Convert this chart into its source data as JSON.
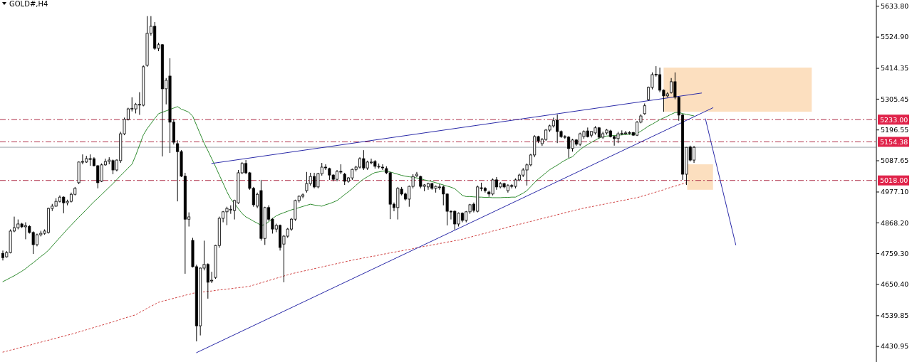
{
  "chart_data": {
    "type": "candlestick",
    "title": "GOLD#,H4",
    "tick_labels": "y",
    "grid": false,
    "ylim": [
      4376,
      5656
    ],
    "yticks": [
      {
        "value": 5633.8,
        "label": "5633.80"
      },
      {
        "value": 5524.9,
        "label": "5524.90"
      },
      {
        "value": 5414.35,
        "label": "5414.35"
      },
      {
        "value": 5305.45,
        "label": "5305.45"
      },
      {
        "value": 5196.55,
        "label": "5196.55"
      },
      {
        "value": 5087.65,
        "label": "5087.65"
      },
      {
        "value": 4977.1,
        "label": "4977.10"
      },
      {
        "value": 4868.2,
        "label": "4868.20"
      },
      {
        "value": 4759.3,
        "label": "4759.30"
      },
      {
        "value": 4650.4,
        "label": "4650.40"
      },
      {
        "value": 4539.85,
        "label": "4539.85"
      },
      {
        "value": 4430.95,
        "label": "4430.95"
      }
    ],
    "categories": [
      null,
      null,
      null,
      null,
      null,
      null,
      null,
      null,
      null,
      null,
      null,
      null,
      null,
      null,
      null,
      null,
      null,
      null,
      null,
      null,
      null,
      null,
      null,
      null,
      null,
      null,
      null,
      null,
      null,
      null,
      null,
      null,
      null,
      null,
      null,
      null,
      null,
      null,
      null,
      null,
      null,
      null,
      null,
      null,
      null,
      null,
      null,
      null,
      null,
      null,
      null,
      null,
      null,
      null,
      null,
      null,
      null,
      null,
      null,
      null,
      null,
      null,
      null,
      null,
      null,
      null,
      null,
      null,
      null,
      null,
      null,
      null,
      null,
      null,
      null,
      null,
      null,
      null,
      null,
      null,
      null,
      null,
      null,
      null,
      null,
      null,
      null,
      null,
      null,
      null,
      null,
      null,
      null,
      null,
      null,
      null,
      null,
      null,
      null,
      null,
      null,
      null,
      null,
      null,
      null,
      null,
      null,
      null,
      null,
      null,
      null,
      null,
      null,
      null,
      null,
      null,
      null,
      null,
      null,
      null,
      null,
      null,
      null,
      null,
      null,
      null,
      null,
      null,
      null,
      null,
      null,
      null,
      null,
      null,
      null,
      null,
      null,
      null,
      null,
      null,
      null,
      null,
      null,
      null,
      null,
      null,
      null,
      null,
      null,
      null,
      null,
      null,
      null,
      null,
      null,
      null,
      null,
      null,
      null,
      null,
      null,
      null,
      null,
      null,
      null,
      null,
      null,
      null,
      null,
      null,
      null,
      null,
      null,
      null,
      null,
      null,
      null,
      null,
      null,
      null,
      null,
      null,
      null,
      null,
      null,
      null,
      null,
      null,
      null,
      null,
      null,
      null,
      null,
      null
    ],
    "ohlc": [
      [
        4760,
        4770,
        4735,
        4745
      ],
      [
        4748,
        4768,
        4745,
        4763
      ],
      [
        4763,
        4845,
        4760,
        4839
      ],
      [
        4839,
        4890,
        4835,
        4851
      ],
      [
        4851,
        4880,
        4845,
        4864
      ],
      [
        4864,
        4868,
        4850,
        4854
      ],
      [
        4854,
        4870,
        4810,
        4858
      ],
      [
        4855,
        4860,
        4830,
        4834
      ],
      [
        4834,
        4838,
        4758,
        4791
      ],
      [
        4791,
        4830,
        4785,
        4826
      ],
      [
        4826,
        4840,
        4820,
        4831
      ],
      [
        4831,
        4845,
        4826,
        4839
      ],
      [
        4834,
        4922,
        4830,
        4919
      ],
      [
        4919,
        4935,
        4910,
        4927
      ],
      [
        4927,
        4955,
        4925,
        4944
      ],
      [
        4944,
        4965,
        4940,
        4959
      ],
      [
        4959,
        4962,
        4902,
        4939
      ],
      [
        4939,
        4950,
        4930,
        4944
      ],
      [
        4944,
        4975,
        4940,
        4969
      ],
      [
        4969,
        4995,
        4965,
        4990
      ],
      [
        5010,
        5085,
        5005,
        5083
      ],
      [
        5083,
        5110,
        5075,
        5085
      ],
      [
        5083,
        5105,
        5080,
        5095
      ],
      [
        5095,
        5110,
        5070,
        5093
      ],
      [
        5095,
        5100,
        5068,
        5070
      ],
      [
        5070,
        5072,
        4990,
        5010
      ],
      [
        5015,
        5078,
        5012,
        5073
      ],
      [
        5073,
        5095,
        5070,
        5085
      ],
      [
        5085,
        5100,
        5075,
        5090
      ],
      [
        5088,
        5092,
        5040,
        5055
      ],
      [
        5055,
        5092,
        5050,
        5090
      ],
      [
        5088,
        5190,
        5080,
        5183
      ],
      [
        5183,
        5240,
        5178,
        5234
      ],
      [
        5234,
        5275,
        5230,
        5271
      ],
      [
        5271,
        5312,
        5262,
        5273
      ],
      [
        5271,
        5292,
        5255,
        5287
      ],
      [
        5285,
        5330,
        5250,
        5287
      ],
      [
        5284,
        5425,
        5280,
        5420
      ],
      [
        5425,
        5599,
        5420,
        5538
      ],
      [
        5538,
        5599,
        5530,
        5563
      ],
      [
        5563,
        5578,
        5480,
        5485
      ],
      [
        5485,
        5505,
        5475,
        5498
      ],
      [
        5498,
        5500,
        5103,
        5342
      ],
      [
        5342,
        5380,
        5287,
        5372
      ],
      [
        5387,
        5450,
        5115,
        5224
      ],
      [
        5224,
        5235,
        5145,
        5153
      ],
      [
        5148,
        5160,
        4944,
        5120
      ],
      [
        5120,
        5125,
        5030,
        5033
      ],
      [
        5033,
        5045,
        4688,
        4881
      ],
      [
        4881,
        4905,
        4855,
        4889
      ],
      [
        4806,
        4815,
        4710,
        4713
      ],
      [
        4713,
        4720,
        4449,
        4504
      ],
      [
        4504,
        4710,
        4470,
        4708
      ],
      [
        4708,
        4805,
        4700,
        4721
      ],
      [
        4721,
        4725,
        4600,
        4658
      ],
      [
        4663,
        4695,
        4655,
        4665
      ],
      [
        4675,
        4790,
        4670,
        4788
      ],
      [
        4788,
        4890,
        4780,
        4884
      ],
      [
        4884,
        4910,
        4870,
        4907
      ],
      [
        4907,
        4925,
        4860,
        4919
      ],
      [
        4914,
        4930,
        4900,
        4916
      ],
      [
        4912,
        4950,
        4880,
        4947
      ],
      [
        4939,
        5055,
        4935,
        5045
      ],
      [
        5045,
        5083,
        5040,
        5078
      ],
      [
        5078,
        5090,
        5040,
        5045
      ],
      [
        5045,
        5048,
        4985,
        4990
      ],
      [
        4990,
        4995,
        4925,
        4932
      ],
      [
        4927,
        4975,
        4920,
        4969
      ],
      [
        4982,
        5020,
        4805,
        4813
      ],
      [
        4813,
        4925,
        4790,
        4922
      ],
      [
        4922,
        4930,
        4875,
        4881
      ],
      [
        4881,
        4885,
        4830,
        4846
      ],
      [
        4846,
        4865,
        4835,
        4859
      ],
      [
        4859,
        4862,
        4770,
        4781
      ],
      [
        4793,
        4825,
        4658,
        4821
      ],
      [
        4821,
        4850,
        4815,
        4846
      ],
      [
        4846,
        4885,
        4840,
        4881
      ],
      [
        4881,
        4950,
        4875,
        4947
      ],
      [
        4947,
        4965,
        4940,
        4962
      ],
      [
        4962,
        4972,
        4955,
        4967
      ],
      [
        4982,
        5048,
        4975,
        5007
      ],
      [
        5007,
        5045,
        5000,
        5032
      ],
      [
        5032,
        5045,
        4990,
        4995
      ],
      [
        4995,
        5045,
        4990,
        5042
      ],
      [
        5042,
        5080,
        5035,
        5065
      ],
      [
        5065,
        5075,
        5055,
        5063
      ],
      [
        5060,
        5063,
        5020,
        5037
      ],
      [
        5037,
        5040,
        5015,
        5022
      ],
      [
        5022,
        5055,
        5015,
        5050
      ],
      [
        5050,
        5075,
        5040,
        5048
      ],
      [
        5040,
        5045,
        5002,
        5015
      ],
      [
        5015,
        5030,
        5010,
        5027
      ],
      [
        5027,
        5060,
        5020,
        5057
      ],
      [
        5057,
        5070,
        5050,
        5065
      ],
      [
        5065,
        5100,
        5060,
        5095
      ],
      [
        5095,
        5125,
        5055,
        5062
      ],
      [
        5062,
        5088,
        5055,
        5083
      ],
      [
        5083,
        5095,
        5075,
        5083
      ],
      [
        5085,
        5090,
        5060,
        5068
      ],
      [
        5068,
        5078,
        5060,
        5068
      ],
      [
        5065,
        5075,
        5055,
        5063
      ],
      [
        5060,
        5068,
        5040,
        5045
      ],
      [
        5045,
        5048,
        4881,
        4934
      ],
      [
        4934,
        4940,
        4909,
        4922
      ],
      [
        4922,
        4995,
        4880,
        4990
      ],
      [
        4987,
        4995,
        4965,
        4970
      ],
      [
        4970,
        4975,
        4947,
        4952
      ],
      [
        4952,
        5000,
        4925,
        4997
      ],
      [
        4997,
        5040,
        4990,
        5032
      ],
      [
        5035,
        5048,
        5030,
        5040
      ],
      [
        5032,
        5035,
        4990,
        4997
      ],
      [
        4997,
        5005,
        4980,
        5002
      ],
      [
        4995,
        5010,
        4985,
        5007
      ],
      [
        5007,
        5010,
        4985,
        4990
      ],
      [
        4990,
        5000,
        4975,
        4997
      ],
      [
        4995,
        5005,
        4985,
        4995
      ],
      [
        4995,
        5000,
        4930,
        4970
      ],
      [
        4970,
        4972,
        4859,
        4909
      ],
      [
        4909,
        4912,
        4880,
        4907
      ],
      [
        4909,
        4912,
        4844,
        4864
      ],
      [
        4864,
        4905,
        4855,
        4902
      ],
      [
        4902,
        4905,
        4870,
        4877
      ],
      [
        4877,
        4910,
        4870,
        4907
      ],
      [
        4907,
        4935,
        4900,
        4932
      ],
      [
        4934,
        4940,
        4905,
        4912
      ],
      [
        4909,
        5000,
        4905,
        4995
      ],
      [
        4992,
        5010,
        4980,
        4990
      ],
      [
        4990,
        4995,
        4975,
        4982
      ],
      [
        4977,
        4982,
        4960,
        4970
      ],
      [
        4970,
        5025,
        4965,
        5020
      ],
      [
        5020,
        5030,
        4985,
        4995
      ],
      [
        4995,
        5012,
        4990,
        5007
      ],
      [
        5007,
        5010,
        4990,
        4995
      ],
      [
        4982,
        5005,
        4975,
        5000
      ],
      [
        5000,
        5005,
        4990,
        4997
      ],
      [
        4997,
        5025,
        4990,
        5020
      ],
      [
        5020,
        5042,
        5015,
        5037
      ],
      [
        5037,
        5062,
        5030,
        5055
      ],
      [
        5055,
        5078,
        5000,
        5073
      ],
      [
        5073,
        5112,
        5068,
        5108
      ],
      [
        5108,
        5178,
        5100,
        5173
      ],
      [
        5173,
        5176,
        5150,
        5158
      ],
      [
        5148,
        5168,
        5140,
        5163
      ],
      [
        5163,
        5200,
        5158,
        5196
      ],
      [
        5196,
        5215,
        5190,
        5211
      ],
      [
        5211,
        5240,
        5205,
        5229
      ],
      [
        5231,
        5251,
        5150,
        5191
      ],
      [
        5191,
        5195,
        5168,
        5173
      ],
      [
        5173,
        5178,
        5165,
        5171
      ],
      [
        5171,
        5175,
        5098,
        5131
      ],
      [
        5131,
        5165,
        5120,
        5161
      ],
      [
        5161,
        5164,
        5140,
        5146
      ],
      [
        5146,
        5187,
        5140,
        5183
      ],
      [
        5173,
        5195,
        5165,
        5191
      ],
      [
        5193,
        5205,
        5170,
        5173
      ],
      [
        5178,
        5192,
        5170,
        5191
      ],
      [
        5186,
        5210,
        5180,
        5204
      ],
      [
        5204,
        5207,
        5165,
        5171
      ],
      [
        5171,
        5190,
        5165,
        5183
      ],
      [
        5186,
        5200,
        5180,
        5196
      ],
      [
        5193,
        5197,
        5170,
        5173
      ],
      [
        5173,
        5176,
        5141,
        5166
      ],
      [
        5166,
        5190,
        5150,
        5183
      ],
      [
        5183,
        5195,
        5178,
        5185
      ],
      [
        5186,
        5193,
        5180,
        5186
      ],
      [
        5186,
        5192,
        5180,
        5187
      ],
      [
        5187,
        5190,
        5176,
        5178
      ],
      [
        5178,
        5228,
        5175,
        5224
      ],
      [
        5224,
        5252,
        5220,
        5246
      ],
      [
        5254,
        5290,
        5250,
        5282
      ],
      [
        5304,
        5350,
        5300,
        5347
      ],
      [
        5347,
        5400,
        5340,
        5392
      ],
      [
        5392,
        5422,
        5385,
        5393
      ],
      [
        5392,
        5417,
        5330,
        5337
      ],
      [
        5337,
        5340,
        5261,
        5317
      ],
      [
        5317,
        5330,
        5312,
        5324
      ],
      [
        5329,
        5380,
        5325,
        5367
      ],
      [
        5367,
        5400,
        5305,
        5312
      ],
      [
        5312,
        5315,
        5229,
        5249
      ],
      [
        5249,
        5253,
        5020,
        5040
      ],
      [
        5040,
        5136,
        5002,
        5135
      ],
      [
        5136,
        5141,
        5085,
        5090
      ],
      [
        5090,
        5140,
        5080,
        5135
      ],
      null,
      null,
      null,
      null,
      null,
      null,
      null,
      null,
      null,
      null,
      null
    ],
    "series": [
      {
        "type": "line",
        "color": "#2e8b2e",
        "line_style": "solid",
        "values": [
          4660,
          4667,
          4674,
          4681,
          4689,
          4697,
          4706,
          4717,
          4727,
          4738,
          4749,
          4759,
          4771,
          4786,
          4801,
          4816,
          4831,
          4846,
          4860,
          4874,
          4888,
          4901,
          4915,
          4929,
          4943,
          4955,
          4968,
          4981,
          4994,
          5007,
          5021,
          5035,
          5048,
          5062,
          5075,
          5107,
          5143,
          5179,
          5201,
          5219,
          5237,
          5254,
          5259,
          5264,
          5269,
          5274,
          5279,
          5270,
          5265,
          5259,
          5245,
          5213,
          5181,
          5150,
          5123,
          5095,
          5067,
          5037,
          5008,
          4978,
          4953,
          4936,
          4918,
          4901,
          4889,
          4882,
          4874,
          4867,
          4859,
          4862,
          4872,
          4883,
          4893,
          4899,
          4904,
          4909,
          4914,
          4918,
          4922,
          4926,
          4930,
          4934,
          4931,
          4929,
          4927,
          4932,
          4936,
          4941,
          4947,
          4957,
          4968,
          4978,
          4989,
          5001,
          5013,
          5023,
          5031,
          5039,
          5046,
          5048,
          5051,
          5052,
          5048,
          5044,
          5040,
          5036,
          5033,
          5031,
          5029,
          5027,
          5024,
          5020,
          5017,
          5014,
          5010,
          5006,
          5002,
          4998,
          4994,
          4989,
          4977,
          4965,
          4961,
          4961,
          4960,
          4959,
          4959,
          4958,
          4958,
          4957,
          4957,
          4957,
          4958,
          4958,
          4959,
          4959,
          4966,
          4973,
          4982,
          4996,
          5010,
          5023,
          5034,
          5045,
          5056,
          5064,
          5072,
          5081,
          5089,
          5096,
          5102,
          5115,
          5127,
          5137,
          5145,
          5153,
          5160,
          5168,
          5173,
          5175,
          5176,
          5177,
          5178,
          5179,
          5180,
          5181,
          5182,
          5184,
          5192,
          5201,
          5210,
          5217,
          5225,
          5233,
          5239,
          5245,
          5252,
          5258,
          5259,
          5254,
          5252,
          5249,
          5246,
          null,
          null,
          null,
          null,
          null,
          null,
          null,
          null,
          null,
          null,
          null
        ]
      },
      {
        "type": "line",
        "color": "#d04040",
        "line_style": "dotted",
        "values": [
          4411,
          4414,
          4418,
          4421,
          4425,
          4428,
          4432,
          4435,
          4439,
          4443,
          4446,
          4450,
          4453,
          4457,
          4460,
          4464,
          4467,
          4471,
          4474,
          4478,
          4482,
          4486,
          4490,
          4494,
          4498,
          4502,
          4506,
          4510,
          4514,
          4518,
          4522,
          4527,
          4531,
          4535,
          4539,
          4543,
          4551,
          4558,
          4566,
          4573,
          4580,
          4587,
          4591,
          4594,
          4598,
          4601,
          4605,
          4608,
          4612,
          4615,
          4619,
          4621,
          4623,
          4624,
          4626,
          4627,
          4629,
          4631,
          4632,
          4634,
          4635,
          4637,
          4639,
          4640,
          4642,
          4644,
          4648,
          4652,
          4656,
          4660,
          4664,
          4668,
          4672,
          4676,
          4680,
          4684,
          4688,
          4691,
          4694,
          4697,
          4700,
          4703,
          4706,
          4709,
          4712,
          4715,
          4718,
          4721,
          4724,
          4727,
          4730,
          4733,
          4736,
          4739,
          4741,
          4744,
          4746,
          4749,
          4751,
          4754,
          4757,
          4759,
          4762,
          4764,
          4767,
          4769,
          4772,
          4774,
          4777,
          4780,
          4782,
          4785,
          4787,
          4790,
          4792,
          4795,
          4797,
          4800,
          4802,
          4805,
          4807,
          4810,
          4814,
          4817,
          4821,
          4824,
          4828,
          4831,
          4835,
          4839,
          4842,
          4846,
          4849,
          4853,
          4856,
          4860,
          4863,
          4866,
          4870,
          4873,
          4876,
          4880,
          4883,
          4887,
          4890,
          4893,
          4897,
          4900,
          4904,
          4907,
          4910,
          4914,
          4917,
          4920,
          4923,
          4925,
          4928,
          4931,
          4933,
          4936,
          4939,
          4941,
          4944,
          4947,
          4949,
          4952,
          4955,
          4957,
          4961,
          4965,
          4969,
          4973,
          4977,
          4981,
          4985,
          4990,
          4994,
          4998,
          5002,
          5006,
          5010,
          null,
          null,
          null,
          null,
          null,
          null,
          null,
          null,
          null,
          null,
          null,
          null,
          null
        ]
      },
      {
        "type": "line",
        "color": "#2a2aa8",
        "line_style": "solid",
        "values": [
          null,
          null,
          null,
          null,
          null,
          null,
          null,
          null,
          null,
          null,
          null,
          null,
          null,
          null,
          null,
          null,
          null,
          null,
          null,
          null,
          null,
          null,
          null,
          null,
          null,
          null,
          null,
          null,
          null,
          null,
          null,
          null,
          null,
          null,
          null,
          null,
          null,
          null,
          null,
          null,
          null,
          null,
          null,
          null,
          null,
          null,
          null,
          null,
          null,
          null,
          null,
          null,
          null,
          null,
          null,
          5078,
          null,
          null,
          null,
          null,
          null,
          null,
          null,
          null,
          null,
          null,
          null,
          null,
          null,
          null,
          null,
          null,
          null,
          null,
          null,
          null,
          null,
          null,
          null,
          null,
          null,
          null,
          null,
          null,
          null,
          null,
          null,
          null,
          null,
          null,
          null,
          null,
          null,
          null,
          null,
          null,
          null,
          null,
          null,
          null,
          null,
          null,
          null,
          null,
          null,
          null,
          null,
          null,
          null,
          null,
          null,
          null,
          null,
          null,
          null,
          null,
          null,
          null,
          null,
          null,
          null,
          null,
          null,
          null,
          null,
          null,
          null,
          null,
          null,
          null,
          null,
          null,
          null,
          null,
          null,
          null,
          null,
          null,
          null,
          null,
          null,
          null,
          null,
          null,
          null,
          null,
          null,
          null,
          null,
          null,
          null,
          null,
          null,
          null,
          null,
          null,
          null,
          null,
          null,
          null,
          null,
          null,
          null,
          null,
          null,
          null,
          null,
          null,
          null,
          null,
          null,
          null,
          null,
          null,
          null,
          null,
          null,
          null,
          null,
          null,
          null,
          null,
          null,
          null,
          5327,
          null,
          null,
          null,
          null,
          null,
          null,
          null,
          null,
          null
        ]
      },
      {
        "type": "line",
        "color": "#2a2aa8",
        "line_style": "solid",
        "values": [
          null,
          null,
          null,
          null,
          null,
          null,
          null,
          null,
          null,
          null,
          null,
          null,
          null,
          null,
          null,
          null,
          null,
          null,
          null,
          null,
          null,
          null,
          null,
          null,
          null,
          null,
          null,
          null,
          null,
          null,
          null,
          null,
          null,
          null,
          null,
          null,
          null,
          null,
          null,
          null,
          null,
          null,
          null,
          null,
          null,
          null,
          null,
          null,
          null,
          null,
          null,
          4409,
          null,
          null,
          null,
          null,
          null,
          null,
          null,
          null,
          null,
          null,
          null,
          null,
          null,
          null,
          null,
          null,
          null,
          null,
          null,
          null,
          null,
          null,
          null,
          null,
          null,
          null,
          null,
          null,
          null,
          null,
          null,
          null,
          null,
          null,
          null,
          null,
          null,
          null,
          null,
          null,
          null,
          null,
          null,
          null,
          null,
          null,
          null,
          null,
          null,
          null,
          null,
          null,
          null,
          null,
          null,
          null,
          null,
          null,
          null,
          null,
          null,
          null,
          null,
          null,
          null,
          null,
          null,
          null,
          null,
          null,
          null,
          null,
          null,
          null,
          null,
          null,
          null,
          null,
          null,
          null,
          null,
          null,
          null,
          null,
          null,
          null,
          null,
          null,
          null,
          null,
          null,
          null,
          null,
          null,
          null,
          null,
          null,
          null,
          null,
          null,
          null,
          null,
          null,
          null,
          null,
          null,
          null,
          null,
          null,
          null,
          null,
          null,
          null,
          null,
          null,
          null,
          null,
          null,
          null,
          null,
          null,
          null,
          null,
          null,
          null,
          null,
          null,
          null,
          null,
          null,
          null,
          null,
          null,
          null,
          null,
          5275,
          null,
          null,
          null,
          null,
          null,
          null
        ]
      },
      {
        "type": "line",
        "color": "#2a2aa8",
        "line_style": "solid",
        "values": [
          null,
          null,
          null,
          null,
          null,
          null,
          null,
          null,
          null,
          null,
          null,
          null,
          null,
          null,
          null,
          null,
          null,
          null,
          null,
          null,
          null,
          null,
          null,
          null,
          null,
          null,
          null,
          null,
          null,
          null,
          null,
          null,
          null,
          null,
          null,
          null,
          null,
          null,
          null,
          null,
          null,
          null,
          null,
          null,
          null,
          null,
          null,
          null,
          null,
          null,
          null,
          null,
          null,
          null,
          null,
          null,
          null,
          null,
          null,
          null,
          null,
          null,
          null,
          null,
          null,
          null,
          null,
          null,
          null,
          null,
          null,
          null,
          null,
          null,
          null,
          null,
          null,
          null,
          null,
          null,
          null,
          null,
          null,
          null,
          null,
          null,
          null,
          null,
          null,
          null,
          null,
          null,
          null,
          null,
          null,
          null,
          null,
          null,
          null,
          null,
          null,
          null,
          null,
          null,
          null,
          null,
          null,
          null,
          null,
          null,
          null,
          null,
          null,
          null,
          null,
          null,
          null,
          null,
          null,
          null,
          null,
          null,
          null,
          null,
          null,
          null,
          null,
          null,
          null,
          null,
          null,
          null,
          null,
          null,
          null,
          null,
          null,
          null,
          null,
          null,
          null,
          null,
          null,
          null,
          null,
          null,
          null,
          null,
          null,
          null,
          null,
          null,
          null,
          null,
          null,
          null,
          null,
          null,
          null,
          null,
          null,
          null,
          null,
          null,
          null,
          null,
          null,
          null,
          null,
          null,
          null,
          null,
          null,
          null,
          null,
          null,
          null,
          null,
          null,
          null,
          null,
          null,
          null,
          null,
          null,
          5236,
          null,
          null,
          null,
          null,
          null,
          null,
          null,
          4790
        ]
      }
    ],
    "ref_lines": [
      {
        "axis": "y",
        "value": 5233,
        "label": "5233.00",
        "color": "#b0304a",
        "line_style": "dashed"
      },
      {
        "axis": "y",
        "value": 5154.38,
        "label": "5154.38",
        "color": "#b0304a",
        "line_style": "dashed"
      },
      {
        "axis": "y",
        "value": 5018,
        "label": "5018.00",
        "color": "#b0304a",
        "line_style": "dashed"
      },
      {
        "axis": "y",
        "value": 5135.3,
        "label": null,
        "color": "#9aa0a8",
        "line_style": "solid"
      }
    ]
  }
}
